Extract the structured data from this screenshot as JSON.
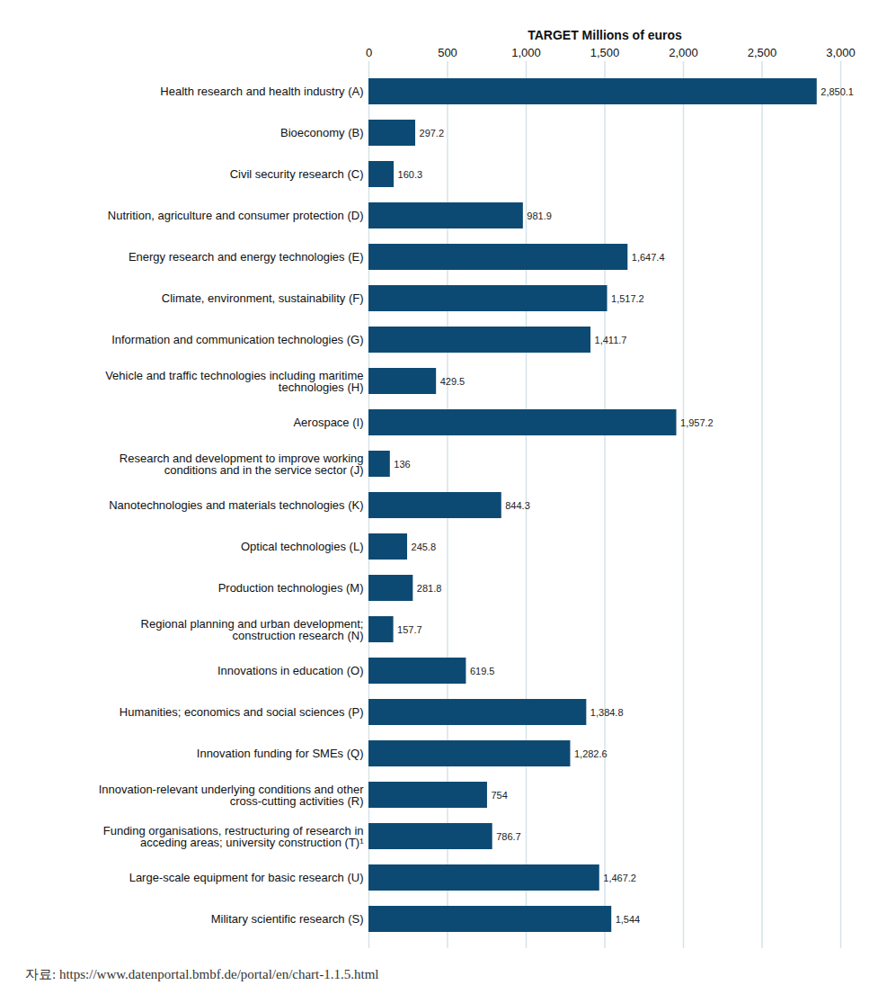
{
  "chart_data": {
    "type": "bar",
    "orientation": "horizontal",
    "xlabel": "TARGET Millions of euros",
    "categories": [
      "Health research and health industry (A)",
      "Bioeconomy (B)",
      "Civil security research (C)",
      "Nutrition, agriculture and consumer protection (D)",
      "Energy research and energy technologies (E)",
      "Climate, environment, sustainability (F)",
      "Information and communication technologies (G)",
      "Vehicle and traffic technologies including maritime technologies (H)",
      "Aerospace (I)",
      "Research and development to improve working conditions and in the service sector (J)",
      "Nanotechnologies and materials technologies (K)",
      "Optical technologies (L)",
      "Production technologies (M)",
      "Regional planning and urban development; construction research (N)",
      "Innovations in education (O)",
      "Humanities; economics and social sciences (P)",
      "Innovation funding for SMEs (Q)",
      "Innovation-relevant underlying conditions and other cross-cutting activities (R)",
      "Funding organisations, restructuring of research in acceding areas; university construction (T)¹",
      "Large-scale equipment for basic research (U)",
      "Military scientific research (S)"
    ],
    "values": [
      2850.1,
      297.2,
      160.3,
      981.9,
      1647.4,
      1517.2,
      1411.7,
      429.5,
      1957.2,
      136,
      844.3,
      245.8,
      281.8,
      157.7,
      619.5,
      1384.8,
      1282.6,
      754,
      786.7,
      1467.2,
      1544
    ],
    "value_labels": [
      "2,850.1",
      "297.2",
      "160.3",
      "981.9",
      "1,647.4",
      "1,517.2",
      "1,411.7",
      "429.5",
      "1,957.2",
      "136",
      "844.3",
      "245.8",
      "281.8",
      "157.7",
      "619.5",
      "1,384.8",
      "1,282.6",
      "754",
      "786.7",
      "1,467.2",
      "1,544"
    ],
    "color": "#0d4a73",
    "xlim": [
      0,
      3000
    ],
    "xticks": [
      0,
      500,
      {
        "value": 1000,
        "label": "1,000"
      },
      {
        "value": 1500,
        "label": "1,500"
      },
      {
        "value": 2000,
        "label": "2,000"
      },
      {
        "value": 2500,
        "label": "2,500"
      },
      {
        "value": 3000,
        "label": "3,000"
      }
    ],
    "grid": true,
    "data_labels": true,
    "caption": "자료: https://www.datenportal.bmbf.de/portal/en/chart-1.1.5.html"
  }
}
